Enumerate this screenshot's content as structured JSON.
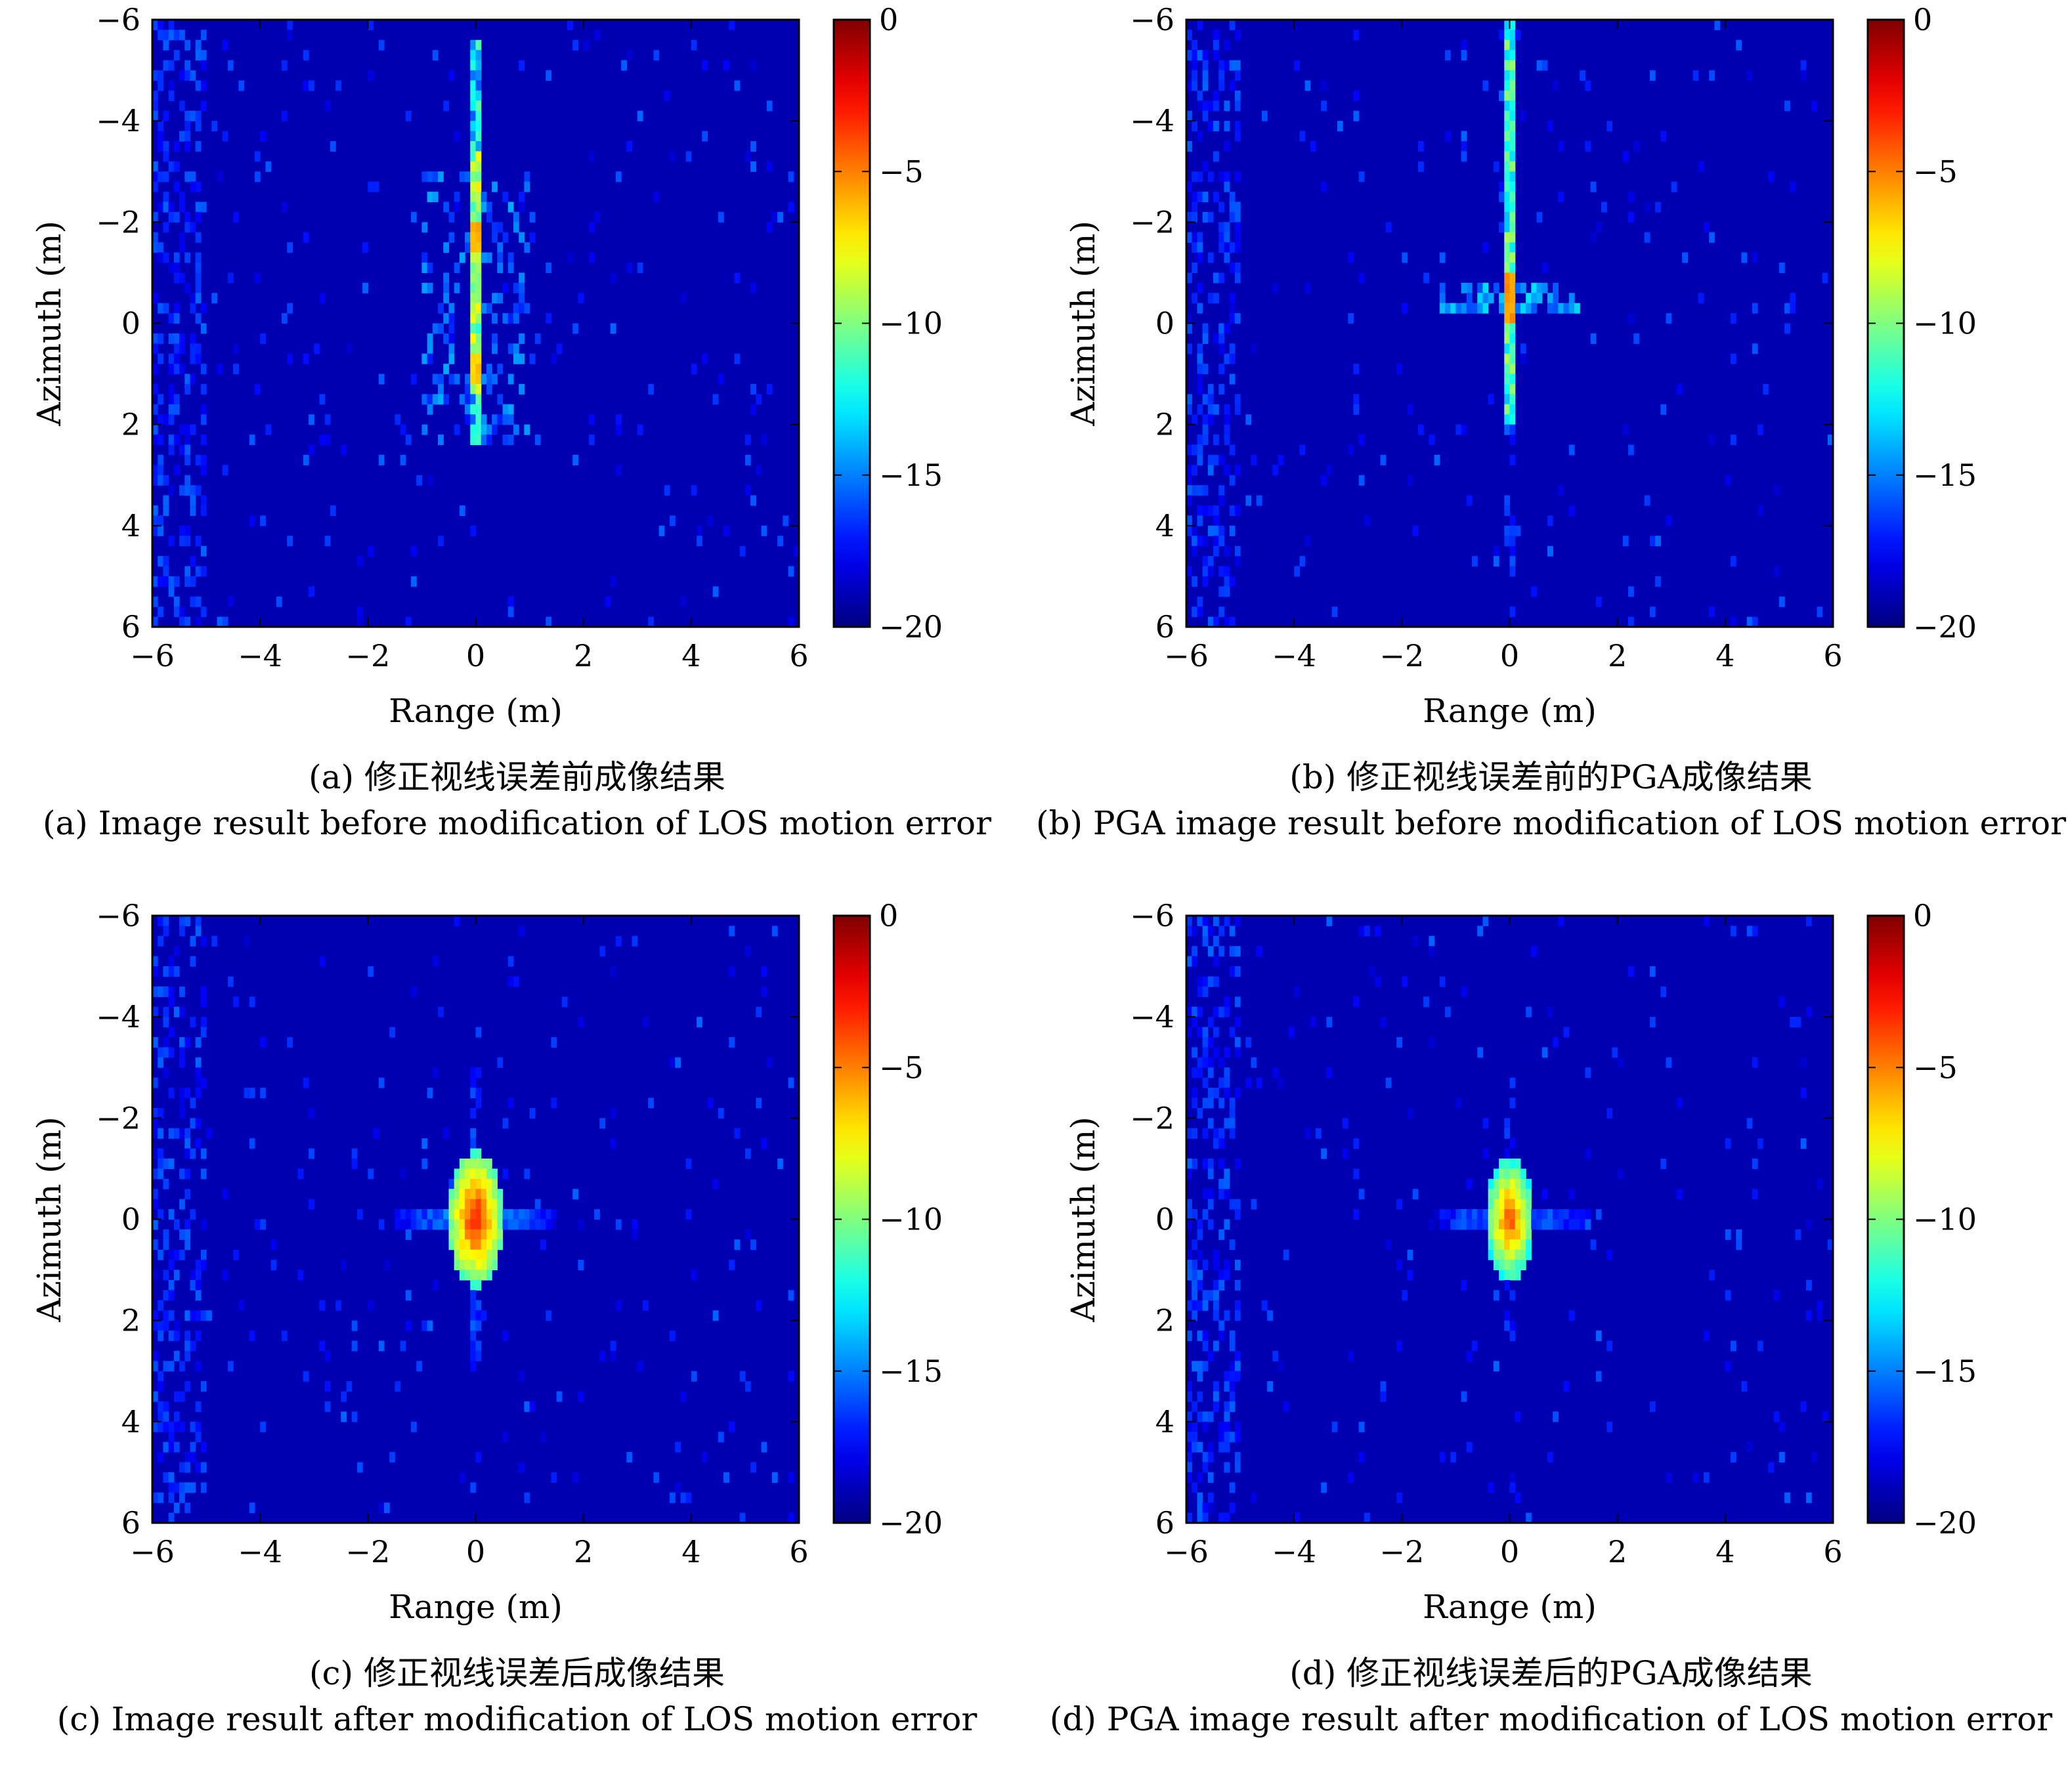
{
  "colors": {
    "colormap": "jet",
    "background_deep_blue": "#1a2ea8",
    "axes_frame": "#000000"
  },
  "chart_data": [
    {
      "id": "a",
      "type": "heatmap",
      "xlabel": "Range (m)",
      "ylabel": "Azimuth (m)",
      "xlim": [
        -6,
        6
      ],
      "ylim": [
        -6,
        6
      ],
      "y_axis_direction": "top-to-bottom",
      "xticks": [
        "−6",
        "−4",
        "−2",
        "0",
        "2",
        "4",
        "6"
      ],
      "yticks": [
        "−6",
        "−4",
        "−2",
        "0",
        "2",
        "4",
        "6"
      ],
      "colorbar": {
        "range": [
          -20,
          0
        ],
        "ticks": [
          "0",
          "−5",
          "−10",
          "−15",
          "−20"
        ],
        "colormap": "jet"
      },
      "caption_cn": "(a) 修正视线误差前成像结果",
      "caption_en": "(a) Image result before modification of LOS motion error",
      "scene": {
        "kind": "smeared",
        "strong_peak": {
          "x": 0.0,
          "y": -1.5,
          "value": -6
        },
        "streak_y": [
          -5.5,
          2.5
        ],
        "noise_level": -19
      }
    },
    {
      "id": "b",
      "type": "heatmap",
      "xlabel": "Range (m)",
      "ylabel": "Azimuth (m)",
      "xlim": [
        -6,
        6
      ],
      "ylim": [
        -6,
        6
      ],
      "y_axis_direction": "top-to-bottom",
      "xticks": [
        "−6",
        "−4",
        "−2",
        "0",
        "2",
        "4",
        "6"
      ],
      "yticks": [
        "−6",
        "−4",
        "−2",
        "0",
        "2",
        "4",
        "6"
      ],
      "colorbar": {
        "range": [
          -20,
          0
        ],
        "ticks": [
          "0",
          "−5",
          "−10",
          "−15",
          "−20"
        ],
        "colormap": "jet"
      },
      "caption_cn": "(b) 修正视线误差前的PGA成像结果",
      "caption_en": "(b) PGA image result before modification of LOS motion error",
      "scene": {
        "kind": "pga-before",
        "strong_peak": {
          "x": 0.0,
          "y": -0.5,
          "value": -5
        },
        "streak_y": [
          -6,
          2.0
        ],
        "noise_level": -19
      }
    },
    {
      "id": "c",
      "type": "heatmap",
      "xlabel": "Range (m)",
      "ylabel": "Azimuth (m)",
      "xlim": [
        -6,
        6
      ],
      "ylim": [
        -6,
        6
      ],
      "y_axis_direction": "top-to-bottom",
      "xticks": [
        "−6",
        "−4",
        "−2",
        "0",
        "2",
        "4",
        "6"
      ],
      "yticks": [
        "−6",
        "−4",
        "−2",
        "0",
        "2",
        "4",
        "6"
      ],
      "colorbar": {
        "range": [
          -20,
          0
        ],
        "ticks": [
          "0",
          "−5",
          "−10",
          "−15",
          "−20"
        ],
        "colormap": "jet"
      },
      "caption_cn": "(c) 修正视线误差后成像结果",
      "caption_en": "(c) Image result after modification of LOS motion error",
      "scene": {
        "kind": "focused",
        "strong_peak": {
          "x": 0.0,
          "y": 0.0,
          "value": -3
        },
        "streak_y": [
          -3,
          3
        ],
        "noise_level": -19.5
      }
    },
    {
      "id": "d",
      "type": "heatmap",
      "xlabel": "Range (m)",
      "ylabel": "Azimuth (m)",
      "xlim": [
        -6,
        6
      ],
      "ylim": [
        -6,
        6
      ],
      "y_axis_direction": "top-to-bottom",
      "xticks": [
        "−6",
        "−4",
        "−2",
        "0",
        "2",
        "4",
        "6"
      ],
      "yticks": [
        "−6",
        "−4",
        "−2",
        "0",
        "2",
        "4",
        "6"
      ],
      "colorbar": {
        "range": [
          -20,
          0
        ],
        "ticks": [
          "0",
          "−5",
          "−10",
          "−15",
          "−20"
        ],
        "colormap": "jet"
      },
      "caption_cn": "(d) 修正视线误差后的PGA成像结果",
      "caption_en": "(d) PGA image result after modification of LOS motion error",
      "scene": {
        "kind": "focused-pga",
        "strong_peak": {
          "x": 0.0,
          "y": 0.0,
          "value": -4
        },
        "streak_y": [
          -2,
          2
        ],
        "noise_level": -19.6
      }
    }
  ]
}
